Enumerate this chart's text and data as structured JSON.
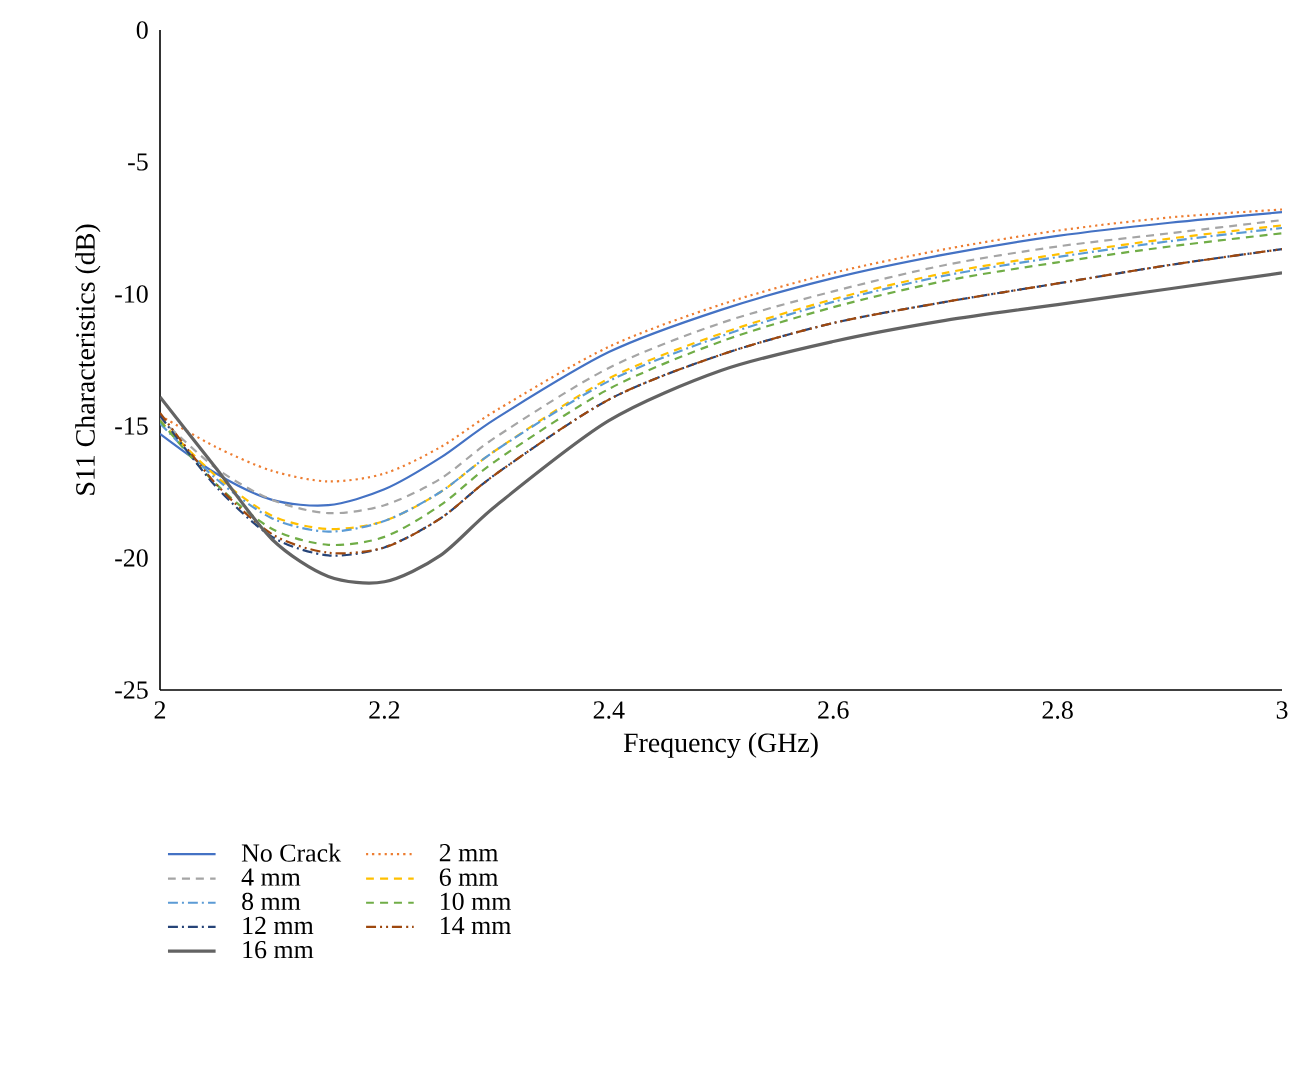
{
  "chart_data": {
    "type": "line",
    "xlabel": "Frequency (GHz)",
    "ylabel": "S11 Characteristics (dB)",
    "x": [
      2.0,
      2.05,
      2.1,
      2.15,
      2.2,
      2.25,
      2.3,
      2.4,
      2.5,
      2.6,
      2.7,
      2.8,
      2.9,
      3.0
    ],
    "xlim": [
      2,
      3
    ],
    "xticks": [
      2,
      2.2,
      2.4,
      2.6,
      2.8,
      3
    ],
    "ylim": [
      -25,
      0
    ],
    "yticks": [
      -25,
      -20,
      -15,
      -10,
      -5,
      0
    ],
    "grid": false,
    "legend": "bottom",
    "series": [
      {
        "name": "No Crack",
        "color": "#4472c4",
        "line_style": "solid",
        "values": [
          -15.3,
          -16.8,
          -17.8,
          -18.0,
          -17.4,
          -16.2,
          -14.7,
          -12.2,
          -10.6,
          -9.4,
          -8.5,
          -7.8,
          -7.3,
          -6.9
        ]
      },
      {
        "name": "2 mm",
        "color": "#ed7d31",
        "line_style": "dotted",
        "values": [
          -14.6,
          -15.8,
          -16.7,
          -17.1,
          -16.8,
          -15.8,
          -14.4,
          -12.0,
          -10.4,
          -9.2,
          -8.3,
          -7.6,
          -7.1,
          -6.8
        ]
      },
      {
        "name": "4 mm",
        "color": "#a5a5a5",
        "line_style": "dashed",
        "values": [
          -14.7,
          -16.6,
          -17.8,
          -18.3,
          -18.0,
          -17.0,
          -15.4,
          -12.8,
          -11.1,
          -9.9,
          -8.9,
          -8.2,
          -7.7,
          -7.2
        ]
      },
      {
        "name": "6 mm",
        "color": "#ffc000",
        "line_style": "dashed",
        "values": [
          -14.8,
          -16.9,
          -18.4,
          -18.9,
          -18.6,
          -17.5,
          -15.9,
          -13.2,
          -11.5,
          -10.2,
          -9.2,
          -8.5,
          -7.9,
          -7.4
        ]
      },
      {
        "name": "8 mm",
        "color": "#5b9bd5",
        "line_style": "dashdot",
        "values": [
          -14.9,
          -17.0,
          -18.5,
          -19.0,
          -18.6,
          -17.5,
          -15.9,
          -13.3,
          -11.6,
          -10.3,
          -9.3,
          -8.6,
          -8.0,
          -7.5
        ]
      },
      {
        "name": "10 mm",
        "color": "#70ad47",
        "line_style": "dashed",
        "values": [
          -14.8,
          -17.2,
          -18.9,
          -19.5,
          -19.2,
          -18.0,
          -16.3,
          -13.6,
          -11.8,
          -10.5,
          -9.5,
          -8.8,
          -8.2,
          -7.7
        ]
      },
      {
        "name": "12 mm",
        "color": "#264478",
        "line_style": "dashdot",
        "values": [
          -14.6,
          -17.3,
          -19.2,
          -19.9,
          -19.6,
          -18.5,
          -16.8,
          -14.0,
          -12.3,
          -11.1,
          -10.3,
          -9.6,
          -8.9,
          -8.3
        ]
      },
      {
        "name": "14 mm",
        "color": "#9e480e",
        "line_style": "dashdotdot",
        "values": [
          -14.5,
          -17.2,
          -19.1,
          -19.8,
          -19.6,
          -18.5,
          -16.8,
          -14.0,
          -12.3,
          -11.1,
          -10.3,
          -9.6,
          -8.9,
          -8.3
        ]
      },
      {
        "name": "16 mm",
        "color": "#636363",
        "line_style": "solid",
        "values": [
          -13.9,
          -16.6,
          -19.3,
          -20.7,
          -20.9,
          -19.9,
          -18.0,
          -14.8,
          -12.9,
          -11.8,
          -11.0,
          -10.4,
          -9.8,
          -9.2
        ]
      }
    ]
  }
}
